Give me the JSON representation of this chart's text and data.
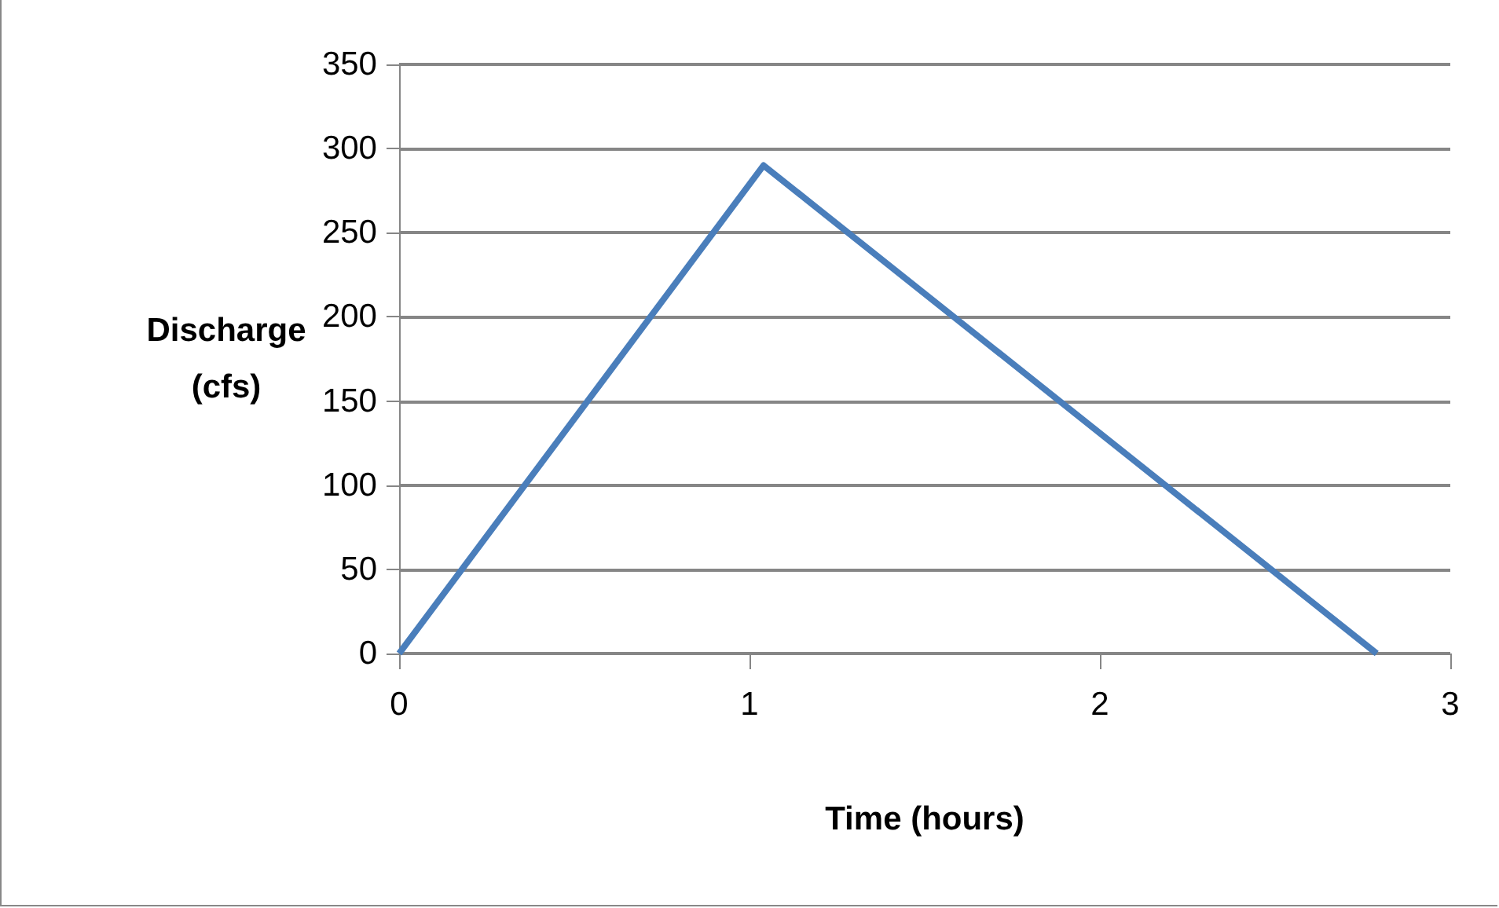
{
  "chart_data": {
    "type": "line",
    "xlabel": "Time (hours)",
    "ylabel": "Discharge\n(cfs)",
    "x": [
      0,
      1.04,
      2.79
    ],
    "series": [
      {
        "color": "#4a7ebb",
        "values": [
          0,
          290,
          0
        ]
      }
    ],
    "xlim": [
      0,
      3
    ],
    "xticks": [
      0,
      1,
      2,
      3
    ],
    "ylim": [
      0,
      350
    ],
    "yticks": [
      0,
      50,
      100,
      150,
      200,
      250,
      300,
      350
    ],
    "grid": "y",
    "marker": "none",
    "line_style": "solid"
  }
}
